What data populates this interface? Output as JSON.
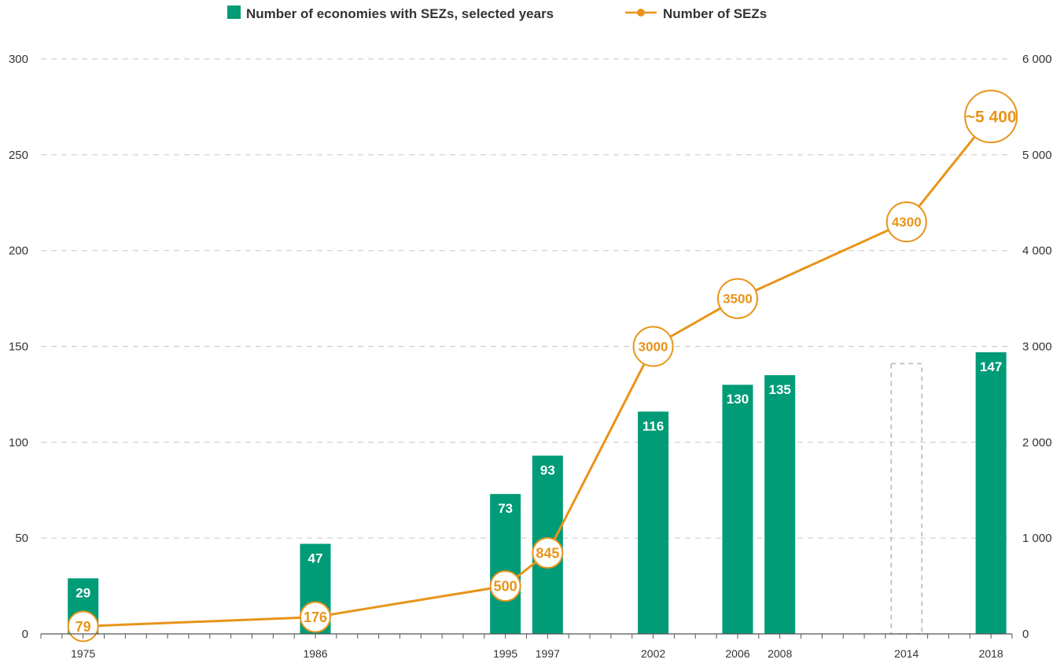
{
  "chart_data": {
    "type": "bar+line",
    "categories": [
      "1975",
      "1986",
      "1995",
      "1997",
      "2002",
      "2006",
      "2008",
      "2014",
      "2018"
    ],
    "x_range": [
      1973,
      2019
    ],
    "series": [
      {
        "name": "Number of economies with SEZs, selected years",
        "type": "bar",
        "axis": "left",
        "color": "#009B77",
        "values": [
          29,
          47,
          73,
          93,
          116,
          130,
          135,
          null,
          147
        ],
        "labels": [
          "29",
          "47",
          "73",
          "93",
          "116",
          "130",
          "135",
          "",
          "147"
        ]
      },
      {
        "name": "Number of SEZs",
        "type": "line",
        "axis": "right",
        "color": "#E8941A",
        "x": [
          1975,
          1986,
          1995,
          1997,
          2002,
          2006,
          2008,
          2014,
          2018
        ],
        "values": [
          79,
          176,
          500,
          845,
          3000,
          3500,
          null,
          4300,
          5400
        ],
        "labels": [
          "79",
          "176",
          "500",
          "845",
          "3000",
          "3500",
          "",
          "4300",
          "~5 400"
        ]
      }
    ],
    "placeholder_bar": {
      "category": "2014",
      "value": 141,
      "style": "dashed-outline"
    },
    "y_left": {
      "min": 0,
      "max": 300,
      "ticks": [
        "0",
        "50",
        "100",
        "150",
        "200",
        "250",
        "300"
      ]
    },
    "y_right": {
      "min": 0,
      "max": 6000,
      "ticks": [
        "0",
        "1 000",
        "2 000",
        "3 000",
        "4 000",
        "5 000",
        "6 000"
      ]
    },
    "grid": "horizontal-dashed",
    "legend_position": "top-center",
    "title": "",
    "xlabel": "",
    "ylabel": ""
  }
}
